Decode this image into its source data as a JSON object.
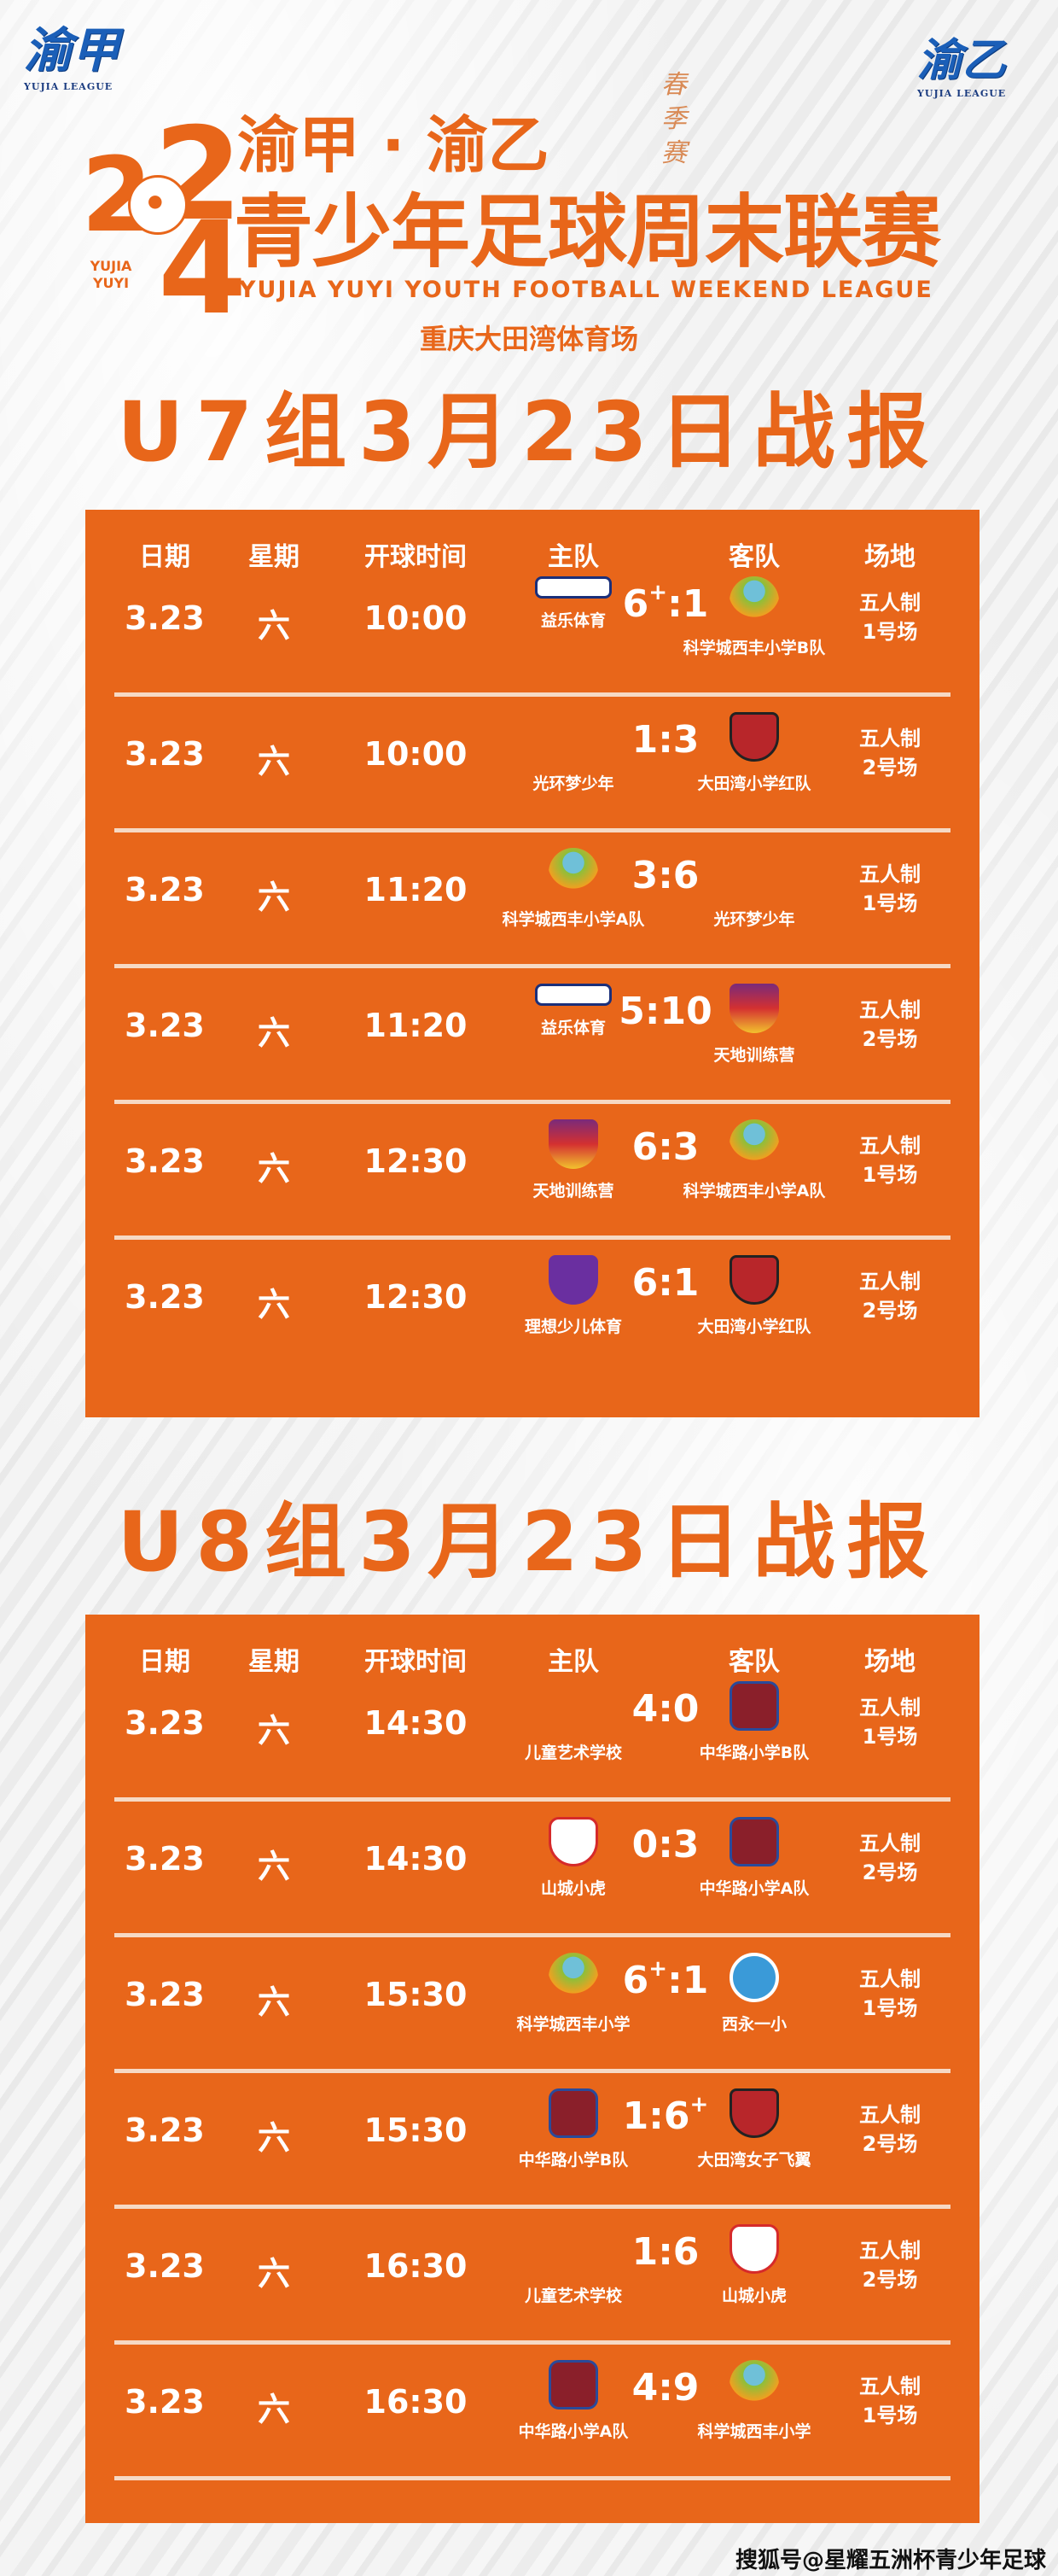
{
  "logos": {
    "left": {
      "text": "渝甲",
      "sub": "YUJIA LEAGUE"
    },
    "right": {
      "text": "渝乙",
      "sub": "YUJIA LEAGUE"
    }
  },
  "header": {
    "year_top": "2",
    "year_mid": "2",
    "year_bottom": "4",
    "yujia_yuyi": "YUJIA YUYI",
    "line1": "渝甲 · 渝乙",
    "season": "春季赛",
    "line2": "青少年足球周末联赛",
    "english": "YUJIA YUYI YOUTH FOOTBALL WEEKEND LEAGUE",
    "venue": "重庆大田湾体育场"
  },
  "colors": {
    "accent": "#e8661a",
    "text_on_accent": "#ffffff"
  },
  "columns": [
    "日期",
    "星期",
    "开球时间",
    "主队",
    "客队",
    "场地"
  ],
  "groups": [
    {
      "title": "U7组3月23日战报",
      "matches": [
        {
          "date": "3.23",
          "weekday": "六",
          "time": "10:00",
          "home": "益乐体育",
          "home_icon": "yile-sport-badge",
          "home_score": "6",
          "home_sup": "+",
          "away_score": "1",
          "away_sup": "",
          "away": "科学城西丰小学B队",
          "away_icon": "tree-badge",
          "venue1": "五人制",
          "venue2": "1号场"
        },
        {
          "date": "3.23",
          "weekday": "六",
          "time": "10:00",
          "home": "光环梦少年",
          "home_icon": "yujia-yuyi-logo",
          "home_score": "1",
          "home_sup": "",
          "away_score": "3",
          "away_sup": "",
          "away": "大田湾小学红队",
          "away_icon": "shield-badge",
          "venue1": "五人制",
          "venue2": "2号场"
        },
        {
          "date": "3.23",
          "weekday": "六",
          "time": "11:20",
          "home": "科学城西丰小学A队",
          "home_icon": "tree-badge",
          "home_score": "3",
          "home_sup": "",
          "away_score": "6",
          "away_sup": "",
          "away": "光环梦少年",
          "away_icon": "yujia-yuyi-logo",
          "venue1": "五人制",
          "venue2": "1号场"
        },
        {
          "date": "3.23",
          "weekday": "六",
          "time": "11:20",
          "home": "益乐体育",
          "home_icon": "yile-sport-badge",
          "home_score": "5",
          "home_sup": "",
          "away_score": "10",
          "away_sup": "",
          "away": "天地训练营",
          "away_icon": "crest-badge",
          "venue1": "五人制",
          "venue2": "2号场"
        },
        {
          "date": "3.23",
          "weekday": "六",
          "time": "12:30",
          "home": "天地训练营",
          "home_icon": "crest-badge",
          "home_score": "6",
          "home_sup": "",
          "away_score": "3",
          "away_sup": "",
          "away": "科学城西丰小学A队",
          "away_icon": "tree-badge",
          "venue1": "五人制",
          "venue2": "1号场"
        },
        {
          "date": "3.23",
          "weekday": "六",
          "time": "12:30",
          "home": "理想少儿体育",
          "home_icon": "purple-shield-badge",
          "home_score": "6",
          "home_sup": "",
          "away_score": "1",
          "away_sup": "",
          "away": "大田湾小学红队",
          "away_icon": "shield-badge",
          "venue1": "五人制",
          "venue2": "2号场"
        }
      ]
    },
    {
      "title": "U8组3月23日战报",
      "matches": [
        {
          "date": "3.23",
          "weekday": "六",
          "time": "14:30",
          "home": "儿童艺术学校",
          "home_icon": "green-bird-logo",
          "home_score": "4",
          "home_sup": "",
          "away_score": "0",
          "away_sup": "",
          "away": "中华路小学B队",
          "away_icon": "school-crest-badge",
          "venue1": "五人制",
          "venue2": "1号场"
        },
        {
          "date": "3.23",
          "weekday": "六",
          "time": "14:30",
          "home": "山城小虎",
          "home_icon": "mountain-shield-badge",
          "home_score": "0",
          "home_sup": "",
          "away_score": "3",
          "away_sup": "",
          "away": "中华路小学A队",
          "away_icon": "school-crest-badge",
          "venue1": "五人制",
          "venue2": "2号场"
        },
        {
          "date": "3.23",
          "weekday": "六",
          "time": "15:30",
          "home": "科学城西丰小学",
          "home_icon": "tree-badge",
          "home_score": "6",
          "home_sup": "+",
          "away_score": "1",
          "away_sup": "",
          "away": "西永一小",
          "away_icon": "blue-round-badge",
          "venue1": "五人制",
          "venue2": "1号场"
        },
        {
          "date": "3.23",
          "weekday": "六",
          "time": "15:30",
          "home": "中华路小学B队",
          "home_icon": "school-crest-badge",
          "home_score": "1",
          "home_sup": "",
          "away_score": "6",
          "away_sup": "+",
          "away": "大田湾女子飞翼",
          "away_icon": "shield-badge",
          "venue1": "五人制",
          "venue2": "2号场"
        },
        {
          "date": "3.23",
          "weekday": "六",
          "time": "16:30",
          "home": "儿童艺术学校",
          "home_icon": "green-bird-logo",
          "home_score": "1",
          "home_sup": "",
          "away_score": "6",
          "away_sup": "",
          "away": "山城小虎",
          "away_icon": "mountain-shield-badge",
          "venue1": "五人制",
          "venue2": "2号场"
        },
        {
          "date": "3.23",
          "weekday": "六",
          "time": "16:30",
          "home": "中华路小学A队",
          "home_icon": "school-crest-badge",
          "home_score": "4",
          "home_sup": "",
          "away_score": "9",
          "away_sup": "",
          "away": "科学城西丰小学",
          "away_icon": "tree-badge",
          "venue1": "五人制",
          "venue2": "1号场"
        }
      ]
    }
  ],
  "footer": {
    "watermark": "搜狐号@星耀五洲杯青少年足球"
  }
}
